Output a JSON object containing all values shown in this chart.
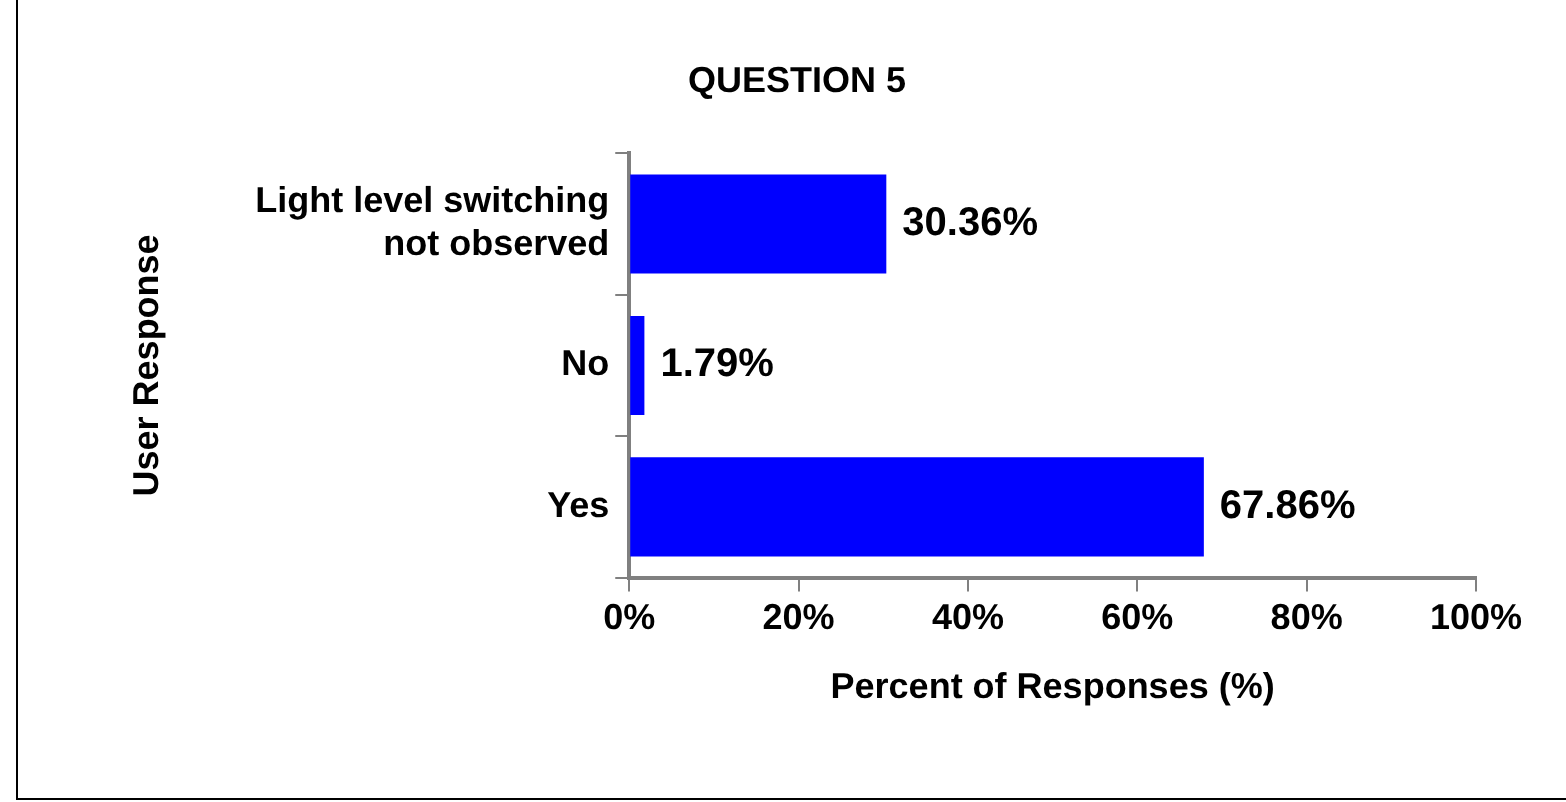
{
  "chart_data": {
    "type": "bar",
    "orientation": "horizontal",
    "title": "QUESTION 5",
    "xlabel": "Percent of Responses (%)",
    "ylabel": "User Response",
    "categories": [
      "Light level switching not observed",
      "No",
      "Yes"
    ],
    "values": [
      30.36,
      1.79,
      67.86
    ],
    "color": "#0000ff",
    "value_labels": [
      "30.36%",
      "1.79%",
      "67.86%"
    ],
    "xlim": [
      0,
      100
    ],
    "xticks": [
      {
        "value": 0,
        "label": "0%"
      },
      {
        "value": 20,
        "label": "20%"
      },
      {
        "value": 40,
        "label": "40%"
      },
      {
        "value": 60,
        "label": "60%"
      },
      {
        "value": 80,
        "label": "80%"
      },
      {
        "value": 100,
        "label": "100%"
      }
    ],
    "grid": false,
    "legend": false
  }
}
